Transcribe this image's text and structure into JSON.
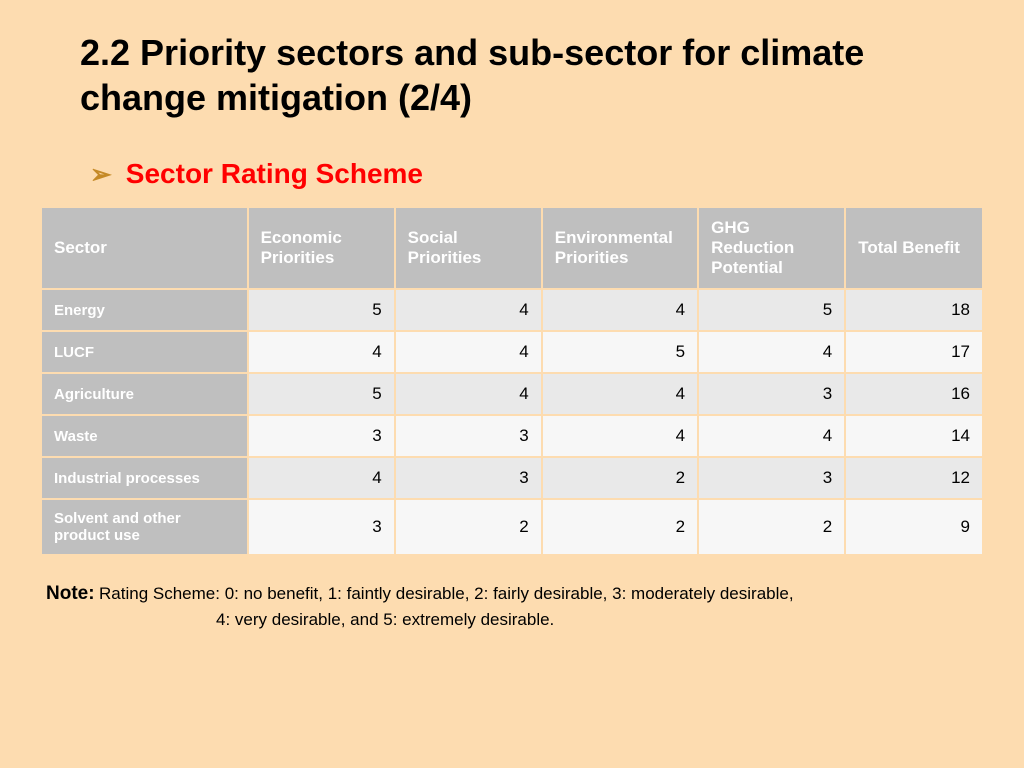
{
  "slide": {
    "background_color": "#fddcb0",
    "title": "2.2 Priority sectors and sub-sector for climate change mitigation (2/4)",
    "title_fontsize": 36,
    "title_color": "#000000",
    "bullet_color": "#c58a27",
    "subtitle": "Sector Rating Scheme",
    "subtitle_fontsize": 28,
    "subtitle_color": "#ff0000"
  },
  "table": {
    "type": "table",
    "header_bg": "#bfbfbf",
    "header_text_color": "#ffffff",
    "header_fontsize": 17,
    "rowlabel_bg": "#bfbfbf",
    "rowlabel_text_color": "#ffffff",
    "rowlabel_fontsize": 15,
    "value_fontsize": 17,
    "value_color": "#000000",
    "alt_row_bg_even": "#e9e9e9",
    "alt_row_bg_odd": "#f7f7f7",
    "col_widths": [
      "22%",
      "15.6%",
      "15.6%",
      "16.6%",
      "15.6%",
      "14.6%"
    ],
    "columns": [
      "Sector",
      "Economic Priorities",
      "Social Priorities",
      "Environmental Priorities",
      "GHG Reduction Potential",
      "Total Benefit"
    ],
    "rows": [
      {
        "label": "Energy",
        "values": [
          5,
          4,
          4,
          5,
          18
        ]
      },
      {
        "label": "LUCF",
        "values": [
          4,
          4,
          5,
          4,
          17
        ]
      },
      {
        "label": "Agriculture",
        "values": [
          5,
          4,
          4,
          3,
          16
        ]
      },
      {
        "label": "Waste",
        "values": [
          3,
          3,
          4,
          4,
          14
        ]
      },
      {
        "label": "Industrial processes",
        "values": [
          4,
          3,
          2,
          3,
          12
        ]
      },
      {
        "label": "Solvent and other product use",
        "values": [
          3,
          2,
          2,
          2,
          9
        ]
      }
    ]
  },
  "note": {
    "label": "Note:",
    "line1": "Rating Scheme: 0: no benefit, 1: faintly desirable, 2: fairly desirable, 3: moderately desirable,",
    "line2": "4: very desirable, and 5: extremely desirable.",
    "label_fontsize": 19,
    "text_fontsize": 17,
    "color": "#000000"
  }
}
